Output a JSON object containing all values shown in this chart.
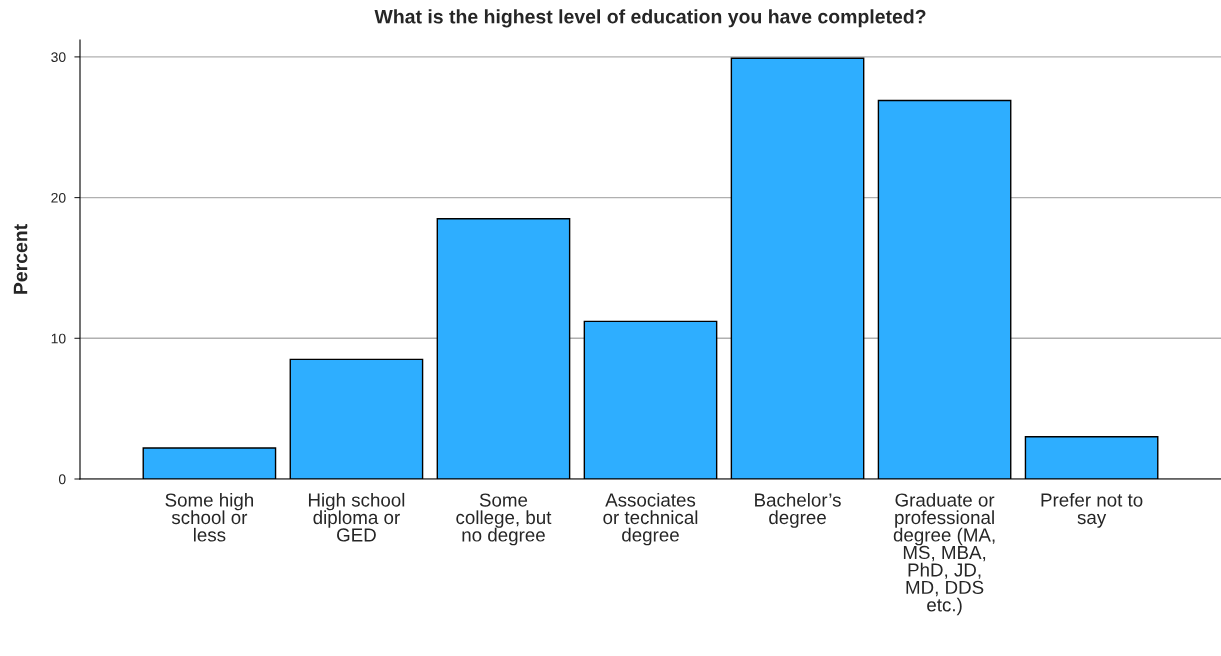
{
  "chart_data": {
    "type": "bar",
    "title": "What is the highest level of education you have completed?",
    "ylabel": "Percent",
    "categories": [
      "Some high\nschool or\nless",
      "High school\ndiploma or\nGED",
      "Some\ncollege, but\nno degree",
      "Associates\nor technical\ndegree",
      "Bachelor’s\ndegree",
      "Graduate or\nprofessional\ndegree (MA,\nMS, MBA,\nPhD, JD,\nMD, DDS\netc.)",
      "Prefer not to\nsay"
    ],
    "values": [
      2.2,
      8.5,
      18.5,
      11.2,
      29.9,
      26.9,
      3.0
    ],
    "color": "#2eaeff",
    "ylim": [
      0,
      31.2
    ],
    "yticks": [
      0,
      10,
      20,
      30
    ],
    "grid": "y"
  }
}
